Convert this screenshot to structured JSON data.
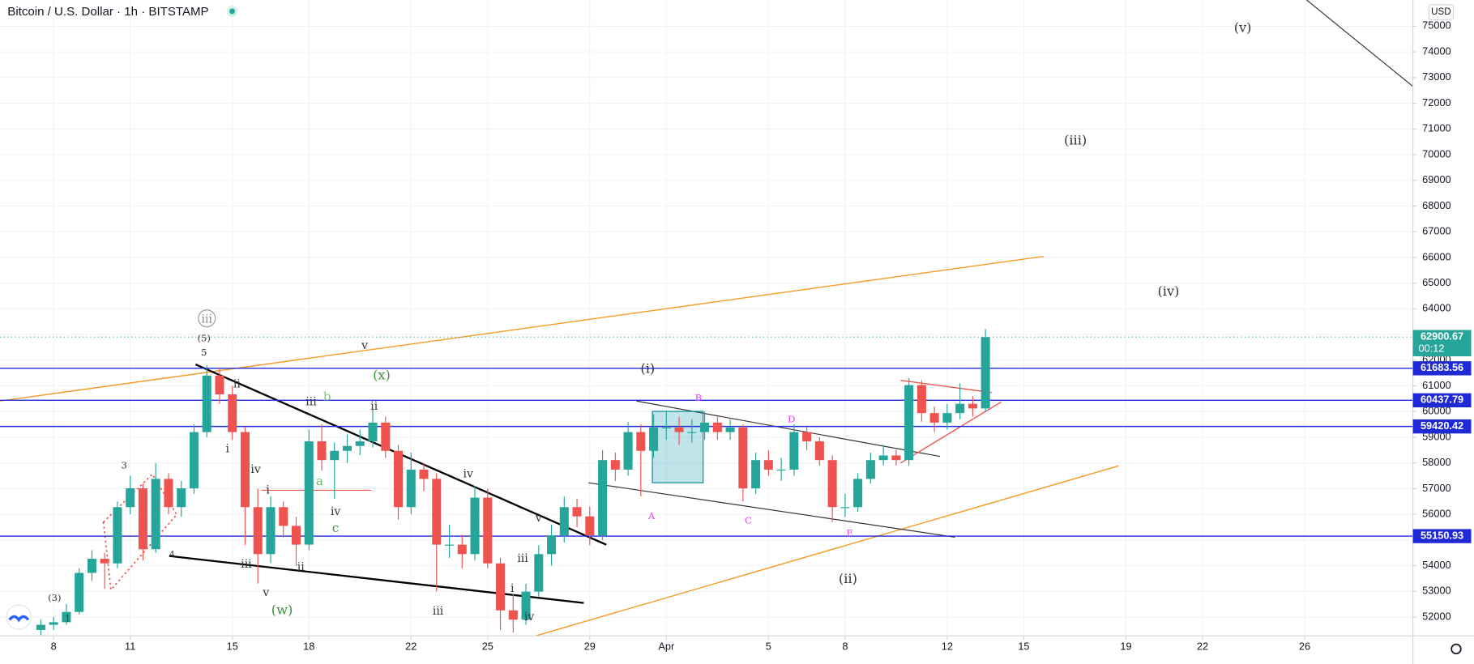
{
  "chart_data": {
    "type": "candlestick",
    "title": "Bitcoin / U.S. Dollar · 1h · BITSTAMP",
    "currency": "USD",
    "x": [
      -0.5,
      0,
      0.5,
      1,
      1.5,
      2,
      2.5,
      3,
      3.5,
      4,
      4.5,
      5,
      5.5,
      6,
      6.5,
      7,
      7.5,
      8,
      8.5,
      9,
      9.5,
      10,
      10.5,
      11,
      11.5,
      12,
      12.5,
      13,
      13.5,
      14,
      14.5,
      15,
      15.5,
      16,
      16.5,
      17,
      17.5,
      18,
      18.5,
      19,
      19.5,
      20,
      20.5,
      21,
      21.5,
      22,
      22.5,
      23,
      23.5,
      24,
      24.5,
      25,
      25.5,
      26,
      26.5,
      27,
      27.5,
      28,
      28.5,
      29,
      29.5,
      30,
      30.5,
      31,
      31.5,
      32,
      32.5,
      33,
      33.5,
      34,
      34.5,
      35,
      35.5,
      36,
      36.5
    ],
    "candles": [
      [
        51500,
        51900,
        51300,
        51700
      ],
      [
        51700,
        52000,
        51500,
        51800
      ],
      [
        51800,
        52500,
        51700,
        52200
      ],
      [
        52200,
        53900,
        52100,
        53720
      ],
      [
        53720,
        54600,
        53400,
        54270
      ],
      [
        54270,
        54500,
        53100,
        54090
      ],
      [
        54090,
        56500,
        53900,
        56280
      ],
      [
        56280,
        57500,
        56000,
        57010
      ],
      [
        57010,
        57200,
        54200,
        54640
      ],
      [
        54640,
        58000,
        54500,
        57380
      ],
      [
        57380,
        57600,
        56000,
        56280
      ],
      [
        56280,
        57300,
        55900,
        57010
      ],
      [
        57010,
        59500,
        56800,
        59200
      ],
      [
        59200,
        61800,
        59000,
        61400
      ],
      [
        61400,
        61700,
        60300,
        60670
      ],
      [
        60670,
        61000,
        58900,
        59200
      ],
      [
        59200,
        59400,
        54800,
        56280
      ],
      [
        56280,
        57000,
        53300,
        54450
      ],
      [
        54450,
        56700,
        54100,
        56280
      ],
      [
        56280,
        56500,
        55100,
        55550
      ],
      [
        55550,
        55900,
        54000,
        54820
      ],
      [
        54820,
        59300,
        54600,
        58840
      ],
      [
        58840,
        59500,
        57700,
        58110
      ],
      [
        58110,
        58800,
        56600,
        58470
      ],
      [
        58470,
        59100,
        58000,
        58660
      ],
      [
        58660,
        59300,
        58300,
        58840
      ],
      [
        58840,
        60100,
        58600,
        59570
      ],
      [
        59570,
        59800,
        58200,
        58470
      ],
      [
        58470,
        58700,
        55800,
        56280
      ],
      [
        56280,
        58400,
        56000,
        57740
      ],
      [
        57740,
        58000,
        56900,
        57380
      ],
      [
        57380,
        57600,
        53000,
        54820
      ],
      [
        54820,
        55600,
        54300,
        54820
      ],
      [
        54820,
        55200,
        53900,
        54450
      ],
      [
        54450,
        57100,
        54200,
        56650
      ],
      [
        56650,
        57000,
        53900,
        54090
      ],
      [
        54090,
        54300,
        51500,
        52260
      ],
      [
        52260,
        52900,
        51400,
        51900
      ],
      [
        51900,
        53300,
        51700,
        52990
      ],
      [
        52990,
        54800,
        52800,
        54450
      ],
      [
        54450,
        55600,
        54000,
        55180
      ],
      [
        55180,
        56700,
        54900,
        56280
      ],
      [
        56280,
        56600,
        55500,
        55920
      ],
      [
        55920,
        56300,
        54800,
        55180
      ],
      [
        55180,
        58500,
        55000,
        58110
      ],
      [
        58110,
        58400,
        57300,
        57740
      ],
      [
        57740,
        59600,
        57500,
        59200
      ],
      [
        59200,
        59500,
        56700,
        58470
      ],
      [
        58470,
        59900,
        58200,
        59380
      ],
      [
        59380,
        60000,
        58900,
        59380
      ],
      [
        59380,
        59800,
        58700,
        59200
      ],
      [
        59200,
        59700,
        58800,
        59200
      ],
      [
        59200,
        60000,
        58900,
        59570
      ],
      [
        59570,
        59800,
        58900,
        59200
      ],
      [
        59200,
        59700,
        58900,
        59380
      ],
      [
        59380,
        59500,
        56500,
        57010
      ],
      [
        57010,
        58400,
        56800,
        58110
      ],
      [
        58110,
        58500,
        57500,
        57740
      ],
      [
        57740,
        58200,
        57300,
        57740
      ],
      [
        57740,
        59500,
        57500,
        59200
      ],
      [
        59200,
        59400,
        58500,
        58840
      ],
      [
        58840,
        59000,
        57900,
        58110
      ],
      [
        58110,
        58300,
        55700,
        56280
      ],
      [
        56280,
        56800,
        55900,
        56280
      ],
      [
        56280,
        57600,
        56100,
        57380
      ],
      [
        57380,
        58400,
        57200,
        58110
      ],
      [
        58110,
        58700,
        57900,
        58290
      ],
      [
        58290,
        58500,
        57900,
        58110
      ],
      [
        58110,
        61300,
        57900,
        61030
      ],
      [
        61030,
        61200,
        59600,
        59940
      ],
      [
        59940,
        60200,
        59200,
        59570
      ],
      [
        59570,
        60300,
        59300,
        59940
      ],
      [
        59940,
        61100,
        59700,
        60300
      ],
      [
        60300,
        60600,
        59800,
        60120
      ],
      [
        60120,
        63200,
        60000,
        62900.67
      ]
    ],
    "colors": {
      "up": "#26a69a",
      "down": "#ef5350"
    },
    "xlim": [
      -2.1,
      53.24
    ],
    "ylim": [
      51270,
      76020
    ],
    "xticks": [
      {
        "value": 0,
        "label": "8"
      },
      {
        "value": 3,
        "label": "11"
      },
      {
        "value": 7,
        "label": "15"
      },
      {
        "value": 10,
        "label": "18"
      },
      {
        "value": 14,
        "label": "22"
      },
      {
        "value": 17,
        "label": "25"
      },
      {
        "value": 21,
        "label": "29"
      },
      {
        "value": 24,
        "label": "Apr"
      },
      {
        "value": 28,
        "label": "5"
      },
      {
        "value": 31,
        "label": "8"
      },
      {
        "value": 35,
        "label": "12"
      },
      {
        "value": 38,
        "label": "15"
      },
      {
        "value": 42,
        "label": "19"
      },
      {
        "value": 45,
        "label": "22"
      },
      {
        "value": 49,
        "label": "26"
      }
    ],
    "yticks": [
      52000,
      53000,
      54000,
      55000,
      56000,
      57000,
      58000,
      59000,
      60000,
      61000,
      62000,
      63000,
      64000,
      65000,
      66000,
      67000,
      68000,
      69000,
      70000,
      71000,
      72000,
      73000,
      74000,
      75000
    ],
    "grid": true,
    "price_lines": [
      {
        "value": 61683.56,
        "color": "#1f2ad6"
      },
      {
        "value": 60437.79,
        "color": "#1f2ad6"
      },
      {
        "value": 59420.42,
        "color": "#1f2ad6"
      },
      {
        "value": 55150.93,
        "color": "#1f2ad6"
      }
    ],
    "last_price": 62900.67,
    "last_color": "#26a69a",
    "countdown": "00:12",
    "annotations": [
      "(3)",
      "1",
      "3",
      "4",
      "(5)",
      "5",
      "iii",
      "ii",
      "i",
      "iv",
      "i",
      "iii",
      "v",
      "ii",
      "(w)",
      "iii",
      "b",
      "a",
      "ii",
      "iv",
      "c",
      "(x)",
      "v",
      "iv",
      "iii",
      "v",
      "iii",
      "i",
      "iv",
      "(i)",
      "A",
      "B",
      "C",
      "D",
      "E",
      "(ii)",
      "(iii)",
      "(iv)",
      "(v)"
    ]
  }
}
